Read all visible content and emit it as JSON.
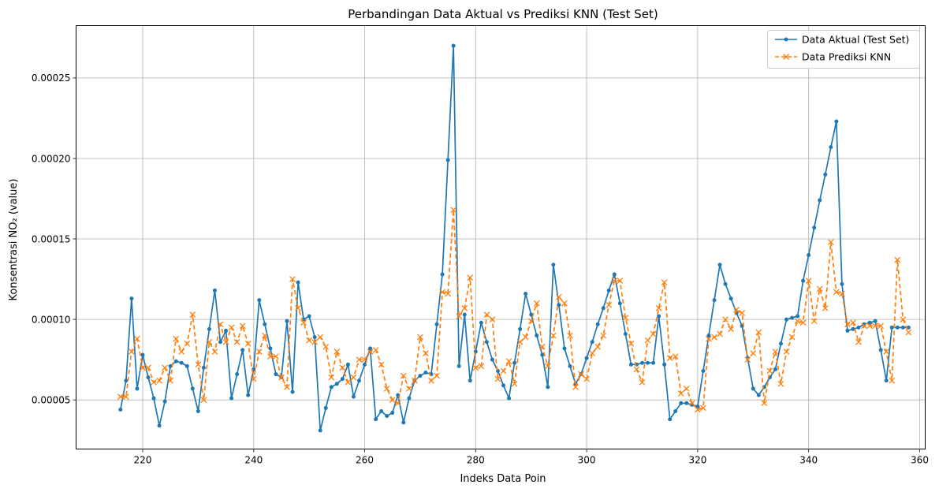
{
  "chart_data": {
    "type": "line",
    "title": "Perbandingan Data Aktual vs Prediksi KNN (Test Set)",
    "xlabel": "Indeks Data Poin",
    "ylabel": "Konsentrasi NO₂ (value)",
    "xlim": [
      208,
      361
    ],
    "ylim": [
      1.95e-05,
      0.0002825
    ],
    "xticks": [
      220,
      240,
      260,
      280,
      300,
      320,
      340,
      360
    ],
    "xtick_labels": [
      "220",
      "240",
      "260",
      "280",
      "300",
      "320",
      "340",
      "360"
    ],
    "yticks": [
      5e-05,
      0.0001,
      0.00015,
      0.0002,
      0.00025
    ],
    "ytick_labels": [
      "0.00005",
      "0.00010",
      "0.00015",
      "0.00020",
      "0.00025"
    ],
    "grid": true,
    "legend_position": "top-right",
    "x_start": 216,
    "series": [
      {
        "name": "Data Aktual (Test Set)",
        "color": "#1f77b4",
        "style": "solid",
        "marker": "dot",
        "values": [
          4.4e-05,
          6.2e-05,
          0.000113,
          5.7e-05,
          7.8e-05,
          6.4e-05,
          5.1e-05,
          3.4e-05,
          4.9e-05,
          7.1e-05,
          7.4e-05,
          7.3e-05,
          7.1e-05,
          5.7e-05,
          4.3e-05,
          7e-05,
          9.4e-05,
          0.000118,
          8.6e-05,
          9.3e-05,
          5.1e-05,
          6.6e-05,
          8.1e-05,
          5.3e-05,
          6.9e-05,
          0.000112,
          9.7e-05,
          8.2e-05,
          6.6e-05,
          6.4e-05,
          9.9e-05,
          5.5e-05,
          0.000123,
          0.0001,
          0.000102,
          8.9e-05,
          3.1e-05,
          4.5e-05,
          5.8e-05,
          6e-05,
          6.3e-05,
          7.2e-05,
          5.2e-05,
          6.2e-05,
          7.2e-05,
          8.2e-05,
          3.8e-05,
          4.3e-05,
          4e-05,
          4.2e-05,
          5.3e-05,
          3.6e-05,
          5.1e-05,
          6.2e-05,
          6.5e-05,
          6.7e-05,
          6.6e-05,
          9.7e-05,
          0.000128,
          0.000199,
          0.00027,
          7.1e-05,
          0.000103,
          6.2e-05,
          8e-05,
          9.8e-05,
          8.6e-05,
          7.5e-05,
          6.8e-05,
          5.9e-05,
          5.1e-05,
          7.3e-05,
          9.4e-05,
          0.000116,
          0.000103,
          9e-05,
          7.8e-05,
          5.8e-05,
          0.000134,
          0.000109,
          8.2e-05,
          7.1e-05,
          6e-05,
          6.6e-05,
          7.6e-05,
          8.6e-05,
          9.7e-05,
          0.000107,
          0.000118,
          0.000128,
          0.00011,
          9.1e-05,
          7.2e-05,
          7.2e-05,
          7.3e-05,
          7.3e-05,
          7.3e-05,
          0.000102,
          7.2e-05,
          3.8e-05,
          4.3e-05,
          4.8e-05,
          4.8e-05,
          4.7e-05,
          4.6e-05,
          6.8e-05,
          9e-05,
          0.000112,
          0.000134,
          0.000122,
          0.000113,
          0.000104,
          9.6e-05,
          7.6e-05,
          5.7e-05,
          5.3e-05,
          5.8e-05,
          6.4e-05,
          6.9e-05,
          8.5e-05,
          0.0001,
          0.000101,
          0.000102,
          0.000124,
          0.00014,
          0.000157,
          0.000174,
          0.00019,
          0.000207,
          0.000223,
          0.000122,
          9.3e-05,
          9.4e-05,
          9.5e-05,
          9.7e-05,
          9.8e-05,
          9.9e-05,
          8.1e-05,
          6.2e-05,
          9.5e-05,
          9.5e-05,
          9.5e-05,
          9.5e-05
        ]
      },
      {
        "name": "Data Prediksi KNN",
        "color": "#ff7f0e",
        "style": "dashed",
        "marker": "x",
        "values": [
          5.2e-05,
          5.2e-05,
          8e-05,
          8.8e-05,
          7e-05,
          7e-05,
          6.1e-05,
          6.2e-05,
          7e-05,
          6.2e-05,
          8.8e-05,
          8e-05,
          8.5e-05,
          0.000103,
          7.2e-05,
          5e-05,
          8.6e-05,
          8e-05,
          9.7e-05,
          8.6e-05,
          9.5e-05,
          8.6e-05,
          9.6e-05,
          8.5e-05,
          6.3e-05,
          8e-05,
          9e-05,
          7.7e-05,
          7.7e-05,
          6.4e-05,
          5.8e-05,
          0.000125,
          0.000107,
          9.8e-05,
          8.7e-05,
          8.6e-05,
          8.9e-05,
          8.3e-05,
          6.4e-05,
          8e-05,
          7e-05,
          6.1e-05,
          6.4e-05,
          7.5e-05,
          7.5e-05,
          8e-05,
          8.1e-05,
          7.2e-05,
          5.7e-05,
          5e-05,
          4.8e-05,
          6.5e-05,
          5.7e-05,
          6.2e-05,
          8.9e-05,
          7.9e-05,
          6.2e-05,
          6.5e-05,
          0.000117,
          0.000116,
          0.000168,
          0.000102,
          0.000107,
          0.000126,
          7e-05,
          7.1e-05,
          0.000103,
          0.0001,
          6.3e-05,
          6.8e-05,
          7.4e-05,
          6e-05,
          8.6e-05,
          8.9e-05,
          9.9e-05,
          0.00011,
          8.3e-05,
          7.1e-05,
          9e-05,
          0.000114,
          0.00011,
          9e-05,
          5.8e-05,
          6.6e-05,
          6.3e-05,
          7.9e-05,
          8.3e-05,
          9e-05,
          0.000109,
          0.000124,
          0.000124,
          0.000101,
          8.5e-05,
          6.9e-05,
          6.1e-05,
          8.7e-05,
          9.1e-05,
          0.000107,
          0.000123,
          7.6e-05,
          7.7e-05,
          5.4e-05,
          5.7e-05,
          4.8e-05,
          4.4e-05,
          4.5e-05,
          8.8e-05,
          8.9e-05,
          9.1e-05,
          0.0001,
          9.4e-05,
          0.000106,
          0.000104,
          7.5e-05,
          7.9e-05,
          9.2e-05,
          4.8e-05,
          6.8e-05,
          8e-05,
          6e-05,
          8e-05,
          8.9e-05,
          9.9e-05,
          9.8e-05,
          0.000124,
          9.9e-05,
          0.000119,
          0.000107,
          0.000148,
          0.000117,
          0.000116,
          9.7e-05,
          9.8e-05,
          8.6e-05,
          9.6e-05,
          9.6e-05,
          9.6e-05,
          9.6e-05,
          8e-05,
          6.2e-05,
          0.000137,
          0.0001,
          9.2e-05
        ]
      }
    ]
  }
}
